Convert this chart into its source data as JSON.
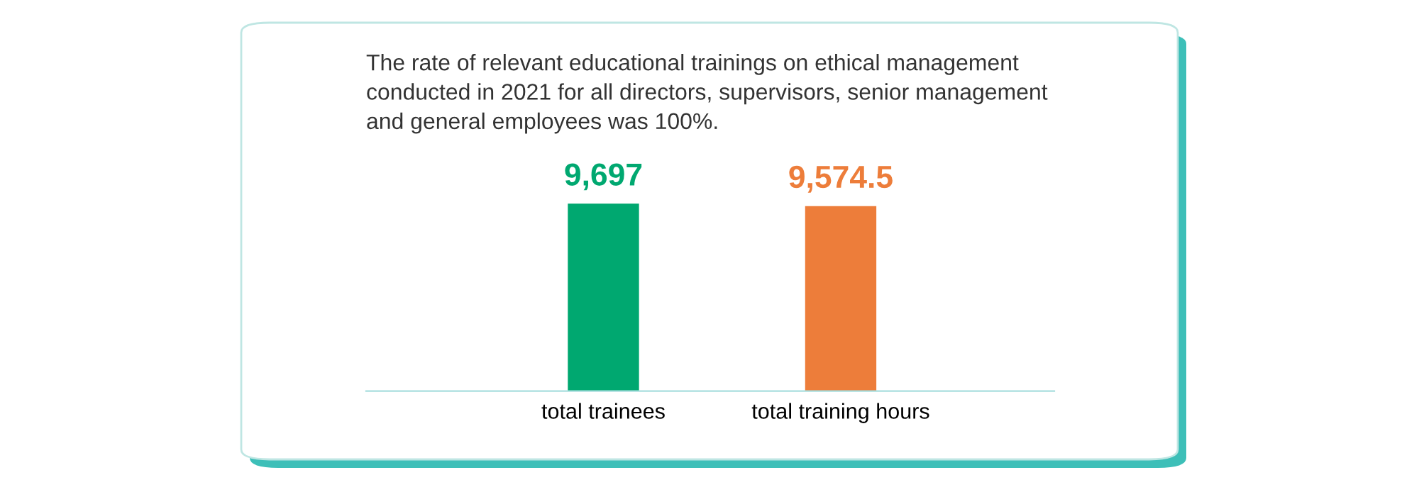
{
  "chart_data": {
    "type": "bar",
    "title": "The rate of relevant educational trainings on ethical management conducted in 2021 for all directors, supervisors, senior management and general employees was 100%.",
    "categories": [
      "total trainees",
      "total training hours"
    ],
    "values": [
      9697,
      9574.5
    ],
    "colors": [
      "#00a870",
      "#ed7d3a"
    ],
    "value_labels": [
      "9,697",
      "9,574.5"
    ]
  }
}
